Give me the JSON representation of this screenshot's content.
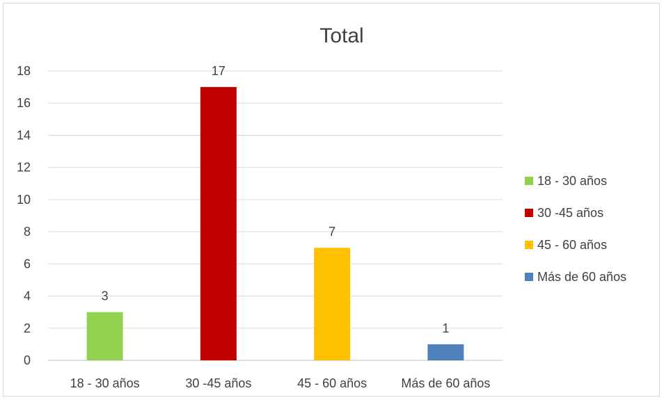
{
  "chart_data": {
    "type": "bar",
    "title": "Total",
    "categories": [
      "18 - 30 años",
      "30 -45 años",
      "45 - 60 años",
      "Más de 60 años"
    ],
    "values": [
      3,
      17,
      7,
      1
    ],
    "colors": [
      "#92d050",
      "#c00000",
      "#ffc000",
      "#4f81bd"
    ],
    "ylim": [
      0,
      18
    ],
    "yticks": [
      0,
      2,
      4,
      6,
      8,
      10,
      12,
      14,
      16,
      18
    ],
    "grid": true,
    "legend_position": "right",
    "legend": [
      "18 - 30 años",
      "30 -45 años",
      "45 - 60 años",
      "Más de 60 años"
    ]
  }
}
